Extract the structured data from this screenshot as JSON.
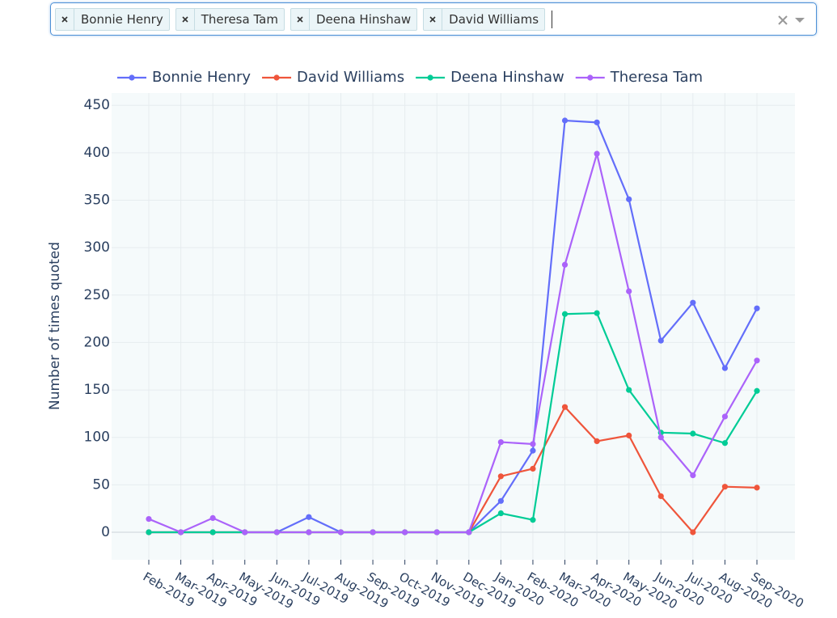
{
  "filter": {
    "selected": [
      "Bonnie Henry",
      "Theresa Tam",
      "Deena Hinshaw",
      "David Williams"
    ]
  },
  "chart_data": {
    "type": "line",
    "y_label": "Number of times quoted",
    "categories": [
      "Feb-2019",
      "Mar-2019",
      "Apr-2019",
      "May-2019",
      "Jun-2019",
      "Jul-2019",
      "Aug-2019",
      "Sep-2019",
      "Oct-2019",
      "Nov-2019",
      "Dec-2019",
      "Jan-2020",
      "Feb-2020",
      "Mar-2020",
      "Apr-2020",
      "May-2020",
      "Jun-2020",
      "Jul-2020",
      "Aug-2020",
      "Sep-2020"
    ],
    "series": [
      {
        "name": "Bonnie Henry",
        "color": "#636efa",
        "values": [
          0,
          0,
          0,
          0,
          0,
          16,
          0,
          0,
          0,
          0,
          0,
          33,
          86,
          434,
          432,
          351,
          202,
          242,
          173,
          236
        ]
      },
      {
        "name": "David Williams",
        "color": "#ef553b",
        "values": [
          0,
          0,
          0,
          0,
          0,
          0,
          0,
          0,
          0,
          0,
          0,
          59,
          67,
          132,
          96,
          102,
          38,
          0,
          48,
          47
        ]
      },
      {
        "name": "Deena Hinshaw",
        "color": "#00cc96",
        "values": [
          0,
          0,
          0,
          0,
          0,
          0,
          0,
          0,
          0,
          0,
          0,
          20,
          13,
          230,
          231,
          150,
          105,
          104,
          94,
          149
        ]
      },
      {
        "name": "Theresa Tam",
        "color": "#ab63fa",
        "values": [
          14,
          0,
          15,
          0,
          0,
          0,
          0,
          0,
          0,
          0,
          0,
          95,
          93,
          282,
          399,
          254,
          100,
          60,
          122,
          181
        ]
      }
    ],
    "ylim": [
      -29,
      463
    ],
    "yticks": [
      0,
      50,
      100,
      150,
      200,
      250,
      300,
      350,
      400,
      450
    ],
    "grid": true,
    "legend": "top"
  }
}
